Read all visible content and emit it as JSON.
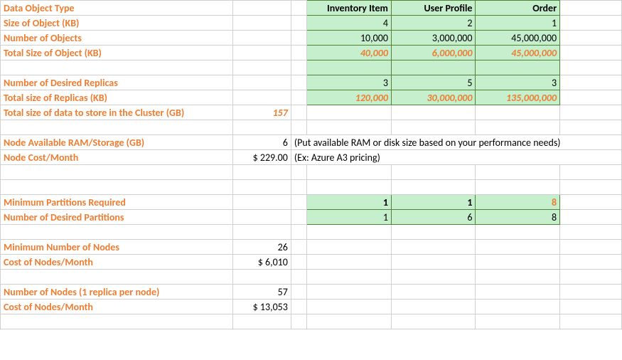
{
  "labels": {
    "dataObjectType": "Data Object Type",
    "sizeOfObject": "Size of Object (KB)",
    "numberOfObjects": "Number of Objects",
    "totalSizeOfObject": "Total Size of Object (KB)",
    "numReplicas": "Number of Desired Replicas",
    "totalReplicas": "Total size of Replicas (KB)",
    "totalCluster": "Total size of data to store in the Cluster (GB)",
    "nodeRam": "Node Available RAM/Storage (GB)",
    "nodeCost": "Node Cost/Month",
    "minPart": "Minimum Partitions Required",
    "desPart": "Number of Desired Partitions",
    "minNodes": "Minimum Number of Nodes",
    "costNodes": "Cost of Nodes/Month",
    "nodes1rep": "Number of Nodes (1 replica per node)",
    "costNodes2": "Cost of Nodes/Month"
  },
  "headers": {
    "c1": "Inventory Item",
    "c2": "User Profile",
    "c3": "Order"
  },
  "sizeKB": {
    "c1": "4",
    "c2": "2",
    "c3": "1"
  },
  "numObj": {
    "c1": "10,000",
    "c2": "3,000,000",
    "c3": "45,000,000"
  },
  "totalKB": {
    "c1": "40,000",
    "c2": "6,000,000",
    "c3": "45,000,000"
  },
  "replicas": {
    "c1": "3",
    "c2": "5",
    "c3": "3"
  },
  "repKB": {
    "c1": "120,000",
    "c2": "30,000,000",
    "c3": "135,000,000"
  },
  "clusterGB": "157",
  "nodeRamVal": "6",
  "nodeRamNote": "(Put available RAM or disk size based on your performance needs)",
  "nodeCostVal": "$ 229.00",
  "nodeCostNote": "(Ex: Azure A3 pricing)",
  "minPartV": {
    "c1": "1",
    "c2": "1",
    "c3": "8"
  },
  "desPartV": {
    "c1": "1",
    "c2": "6",
    "c3": "8"
  },
  "minNodesV": "26",
  "costNodesV": "$  6,010",
  "nodes1repV": "57",
  "costNodes2V": "$ 13,053",
  "colors": {
    "accent": "#ed7d31",
    "greenFill": "#c6efce",
    "greenBorder": "#548235",
    "grid": "#d0d0d0",
    "text": "#000000"
  }
}
